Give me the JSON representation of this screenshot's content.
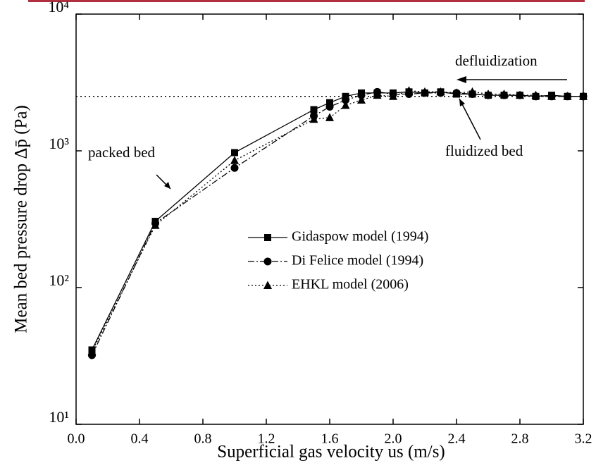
{
  "chart_data": {
    "type": "line",
    "xlabel": "Superficial gas velocity us (m/s)",
    "ylabel": "Mean bed pressure drop Δp̄ (Pa)",
    "annotations": [
      "packed bed",
      "fluidized bed",
      "defluidization"
    ],
    "x": [
      0.1,
      0.5,
      1.0,
      1.5,
      1.6,
      1.7,
      1.8,
      1.9,
      2.0,
      2.1,
      2.2,
      2.3,
      2.4,
      2.5,
      2.6,
      2.7,
      2.8,
      2.9,
      3.0,
      3.1,
      3.2
    ],
    "series": [
      {
        "name": "Gidaspow model (1994)",
        "color": "#000000",
        "values": [
          35,
          305,
          970,
          2000,
          2250,
          2500,
          2650,
          2650,
          2650,
          2700,
          2650,
          2700,
          2600,
          2600,
          2550,
          2550,
          2550,
          2500,
          2550,
          2500,
          2500
        ]
      },
      {
        "name": "Di Felice model (1994)",
        "color": "#000000",
        "values": [
          32,
          295,
          750,
          1800,
          2100,
          2350,
          2550,
          2700,
          2600,
          2600,
          2650,
          2650,
          2650,
          2600,
          2550,
          2550,
          2550,
          2500,
          2500,
          2500,
          2500
        ]
      },
      {
        "name": "EHKL model (2006)",
        "color": "#000000",
        "values": [
          34,
          285,
          850,
          1700,
          1750,
          2150,
          2350,
          2550,
          2500,
          2750,
          2700,
          2700,
          2650,
          2700,
          2600,
          2600,
          2550,
          2550,
          2500,
          2500,
          2500
        ]
      }
    ],
    "reference_line": 2500,
    "xlim": [
      0,
      3.2
    ],
    "xticks": [
      {
        "value": 0,
        "label": "0.0"
      },
      0.4,
      0.8,
      1.2,
      1.6,
      {
        "value": 2,
        "label": "2.0"
      },
      2.4,
      2.8,
      3.2
    ],
    "ylim": [
      10,
      10000
    ],
    "yscale": "log",
    "yticks": [
      {
        "value": 10,
        "label": "10¹"
      },
      {
        "value": 100,
        "label": "10²"
      },
      {
        "value": 1000,
        "label": "10³"
      },
      {
        "value": 10000,
        "label": "10⁴"
      }
    ],
    "grid": false
  }
}
